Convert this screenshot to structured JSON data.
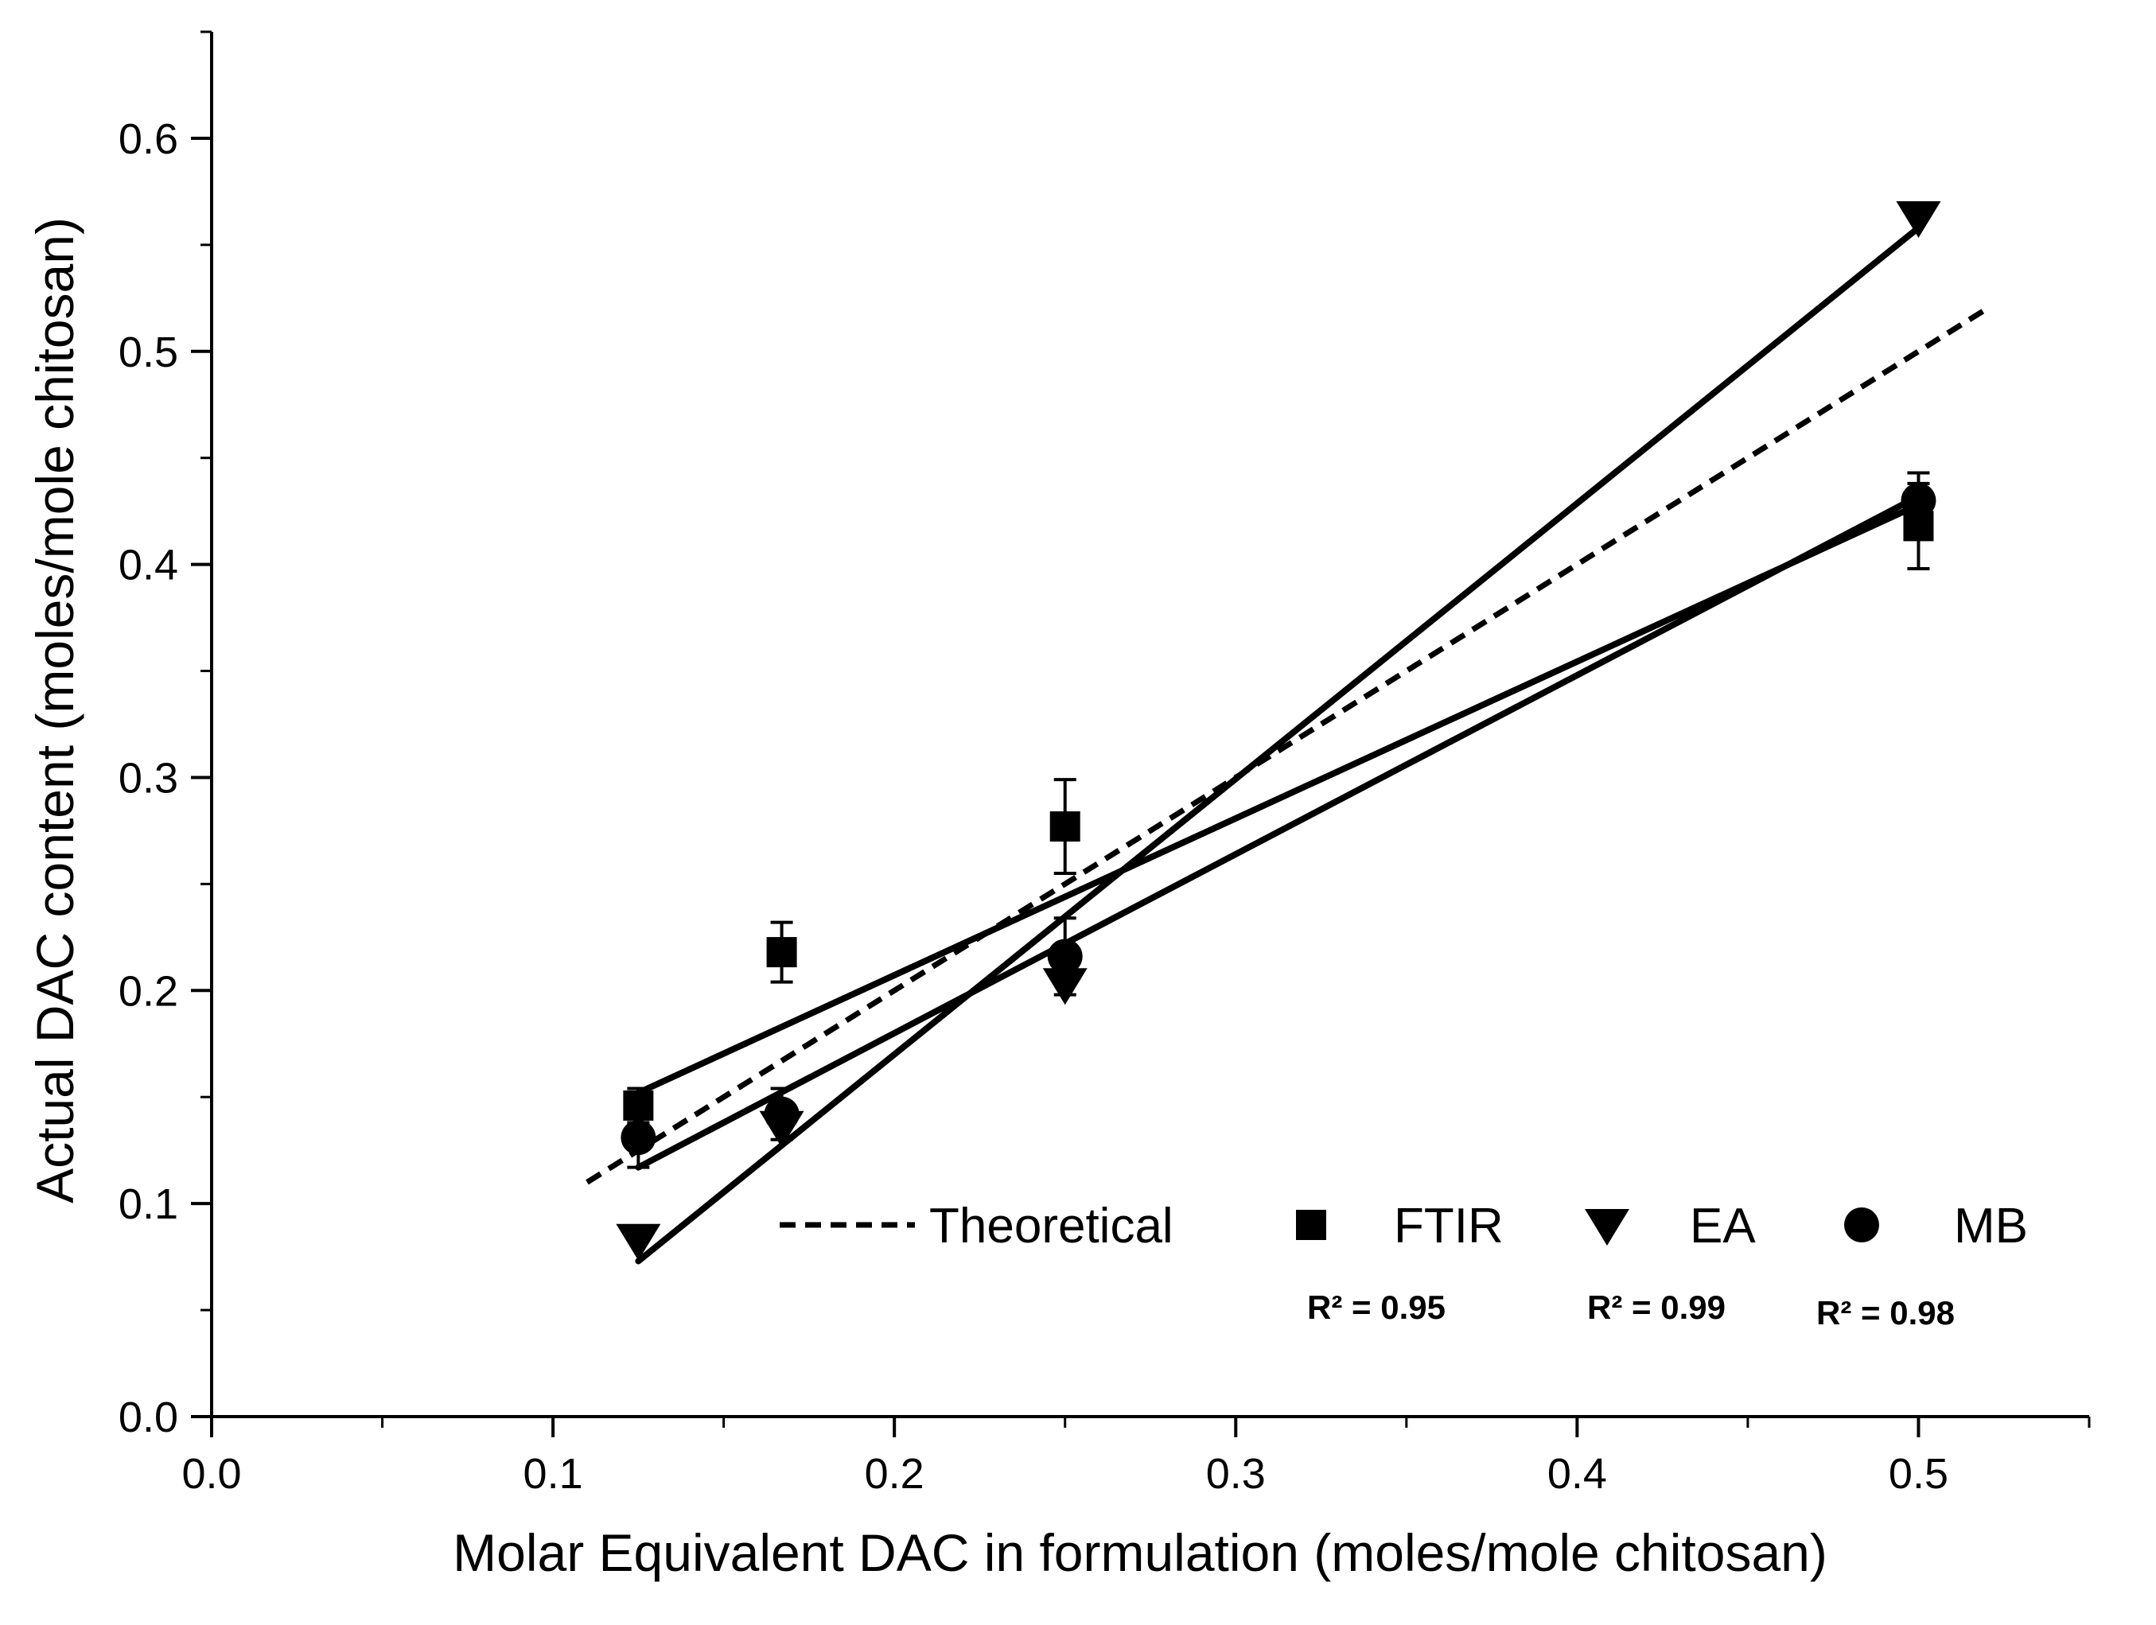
{
  "chart_data": {
    "type": "scatter",
    "title": "",
    "xlabel": "Molar Equivalent DAC in formulation (moles/mole chitosan)",
    "ylabel": "Actual DAC content (moles/mole chitosan)",
    "xlim": [
      0.0,
      0.55
    ],
    "ylim": [
      0.0,
      0.65
    ],
    "x_ticks": [
      "0.0",
      "0.1",
      "0.2",
      "0.3",
      "0.4",
      "0.5"
    ],
    "y_ticks": [
      "0.0",
      "0.1",
      "0.2",
      "0.3",
      "0.4",
      "0.5",
      "0.6"
    ],
    "grid": false,
    "legend_position": "bottom-right",
    "series": [
      {
        "name": "Theoretical",
        "kind": "line",
        "style": "dashed",
        "x": [
          0.11,
          0.52
        ],
        "y": [
          0.11,
          0.52
        ]
      },
      {
        "name": "FTIR",
        "kind": "points",
        "marker": "square",
        "x": [
          0.125,
          0.167,
          0.25,
          0.5
        ],
        "y": [
          0.146,
          0.218,
          0.277,
          0.418
        ],
        "error": [
          0.008,
          0.014,
          0.022,
          0.02
        ],
        "fit": {
          "x": [
            0.125,
            0.5
          ],
          "y": [
            0.152,
            0.428
          ]
        },
        "r2_label": "R² = 0.95"
      },
      {
        "name": "EA",
        "kind": "points",
        "marker": "triangle-down",
        "x": [
          0.125,
          0.167,
          0.25,
          0.5
        ],
        "y": [
          0.083,
          0.136,
          0.203,
          0.563
        ],
        "error": [
          0,
          0,
          0,
          0
        ],
        "fit": {
          "x": [
            0.125,
            0.5
          ],
          "y": [
            0.073,
            0.558
          ]
        },
        "r2_label": "R² = 0.99"
      },
      {
        "name": "MB",
        "kind": "points",
        "marker": "circle",
        "x": [
          0.125,
          0.167,
          0.25,
          0.5
        ],
        "y": [
          0.131,
          0.142,
          0.216,
          0.43
        ],
        "error": [
          0.014,
          0.012,
          0.018,
          0.013
        ],
        "fit": {
          "x": [
            0.125,
            0.5
          ],
          "y": [
            0.117,
            0.432
          ]
        },
        "r2_label": "R² = 0.98"
      }
    ]
  }
}
